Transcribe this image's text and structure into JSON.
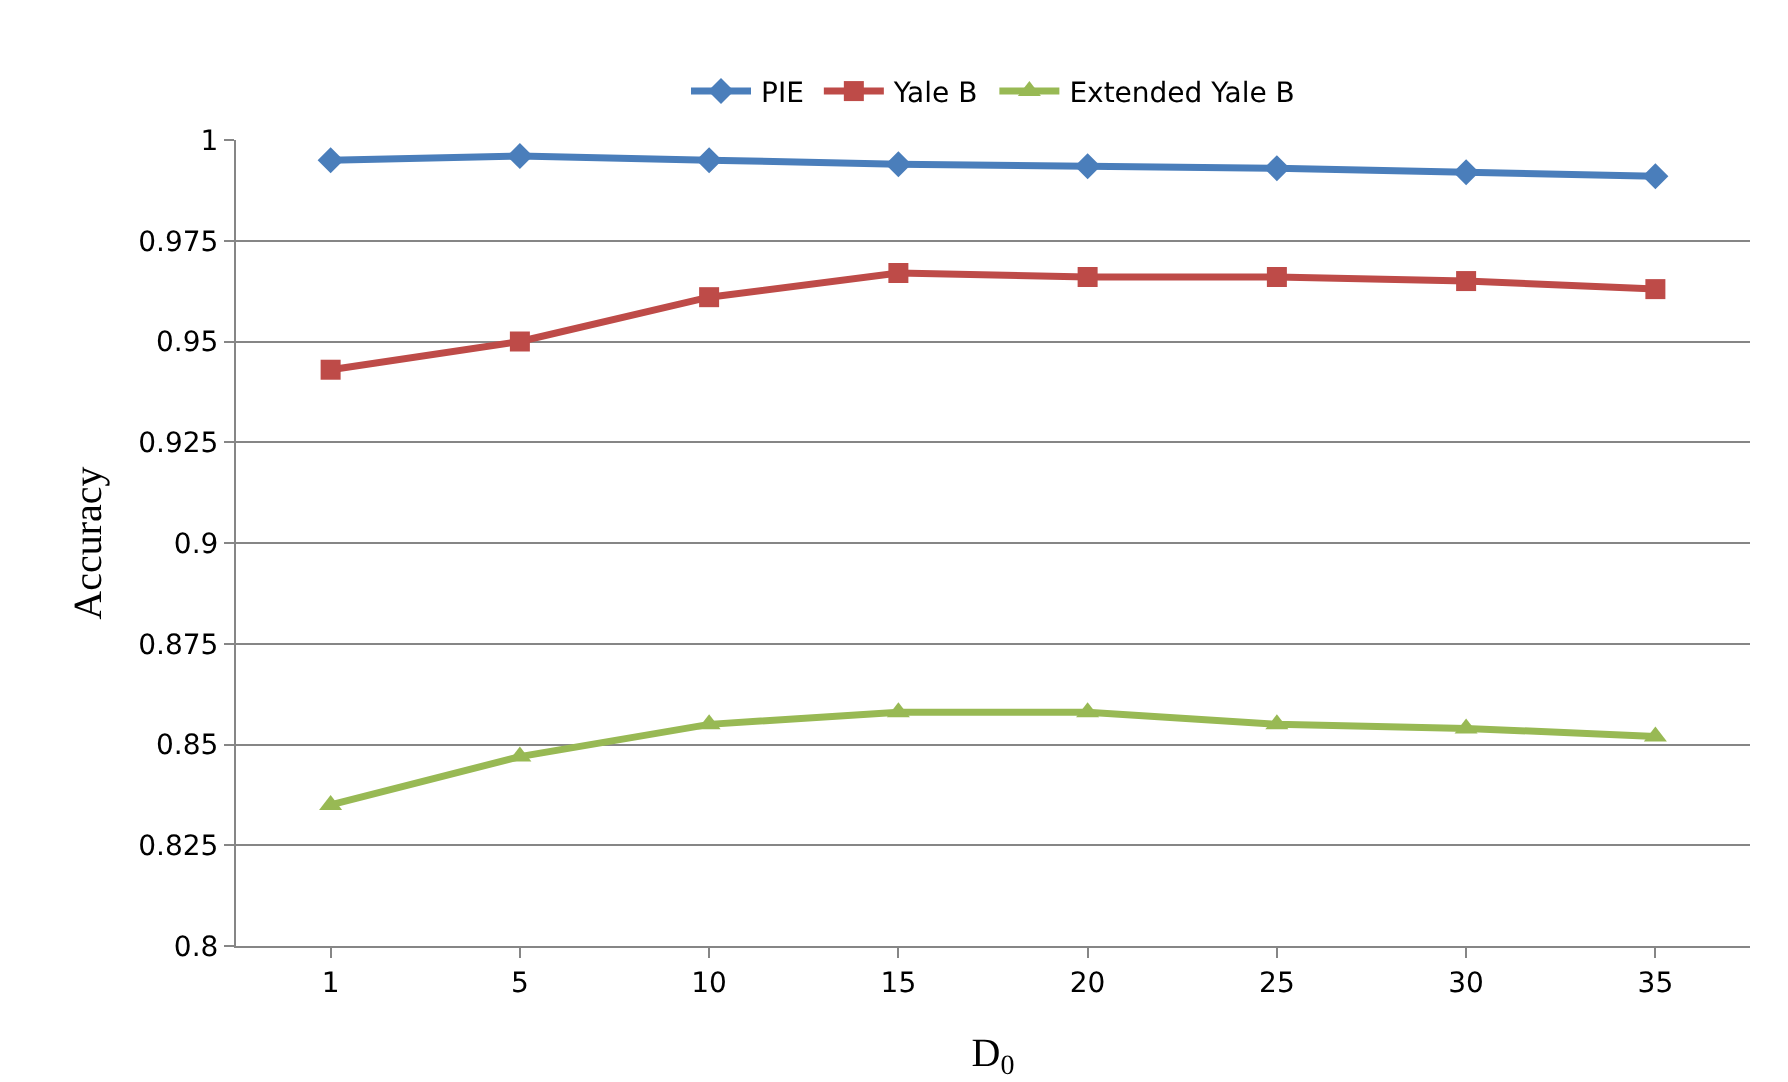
{
  "chart_data": {
    "type": "line",
    "xlabel": "D$_{0}$",
    "ylabel": "Accuracy",
    "categories": [
      "1",
      "5",
      "10",
      "15",
      "20",
      "25",
      "30",
      "35"
    ],
    "series": [
      {
        "name": "PIE",
        "color": "#4a7ebb",
        "marker": "diamond",
        "values": [
          0.995,
          0.996,
          0.995,
          0.994,
          0.9935,
          0.993,
          0.992,
          0.991
        ]
      },
      {
        "name": "Yale B",
        "color": "#be4b48",
        "marker": "square",
        "values": [
          0.943,
          0.95,
          0.961,
          0.967,
          0.966,
          0.966,
          0.965,
          0.963
        ]
      },
      {
        "name": "Extended Yale B",
        "color": "#98b954",
        "marker": "triangle",
        "values": [
          0.835,
          0.847,
          0.855,
          0.858,
          0.858,
          0.855,
          0.854,
          0.852
        ]
      }
    ],
    "ylim": [
      0.8,
      1
    ],
    "yticks": [
      0.8,
      0.825,
      0.85,
      0.875,
      0.9,
      0.925,
      0.95,
      0.975,
      1
    ],
    "grid": "y",
    "legend": "top",
    "line_style": "solid"
  }
}
